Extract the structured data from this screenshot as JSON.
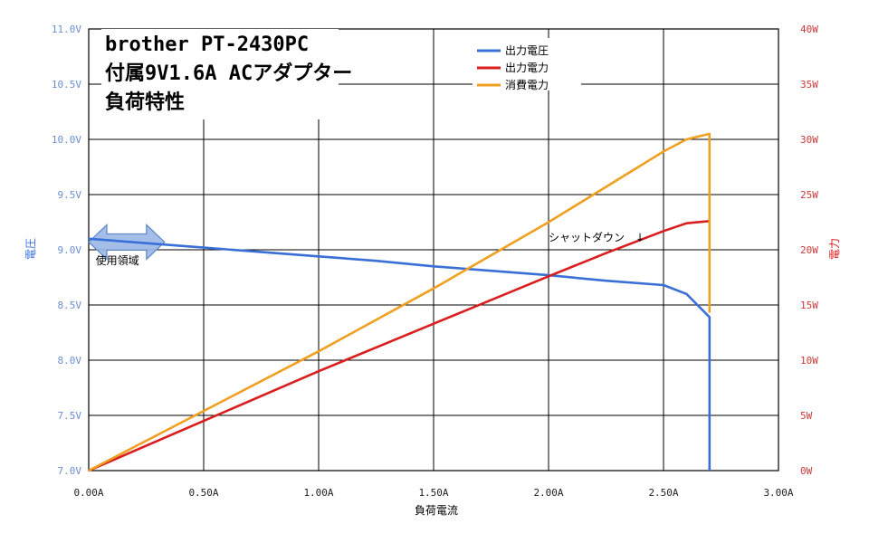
{
  "chart_data": {
    "type": "line",
    "title_lines": [
      "brother PT-2430PC",
      "付属9V1.6A ACアダプター",
      "負荷特性"
    ],
    "xlabel": "負荷電流",
    "ylabel_left": "電圧",
    "ylabel_right": "電力",
    "x_ticks": [
      "0.00A",
      "0.50A",
      "1.00A",
      "1.50A",
      "2.00A",
      "2.50A",
      "3.00A"
    ],
    "y_left_ticks": [
      "7.0V",
      "7.5V",
      "8.0V",
      "8.5V",
      "9.0V",
      "9.5V",
      "10.0V",
      "10.5V",
      "11.0V"
    ],
    "y_right_ticks": [
      "0W",
      "5W",
      "10W",
      "15W",
      "20W",
      "25W",
      "30W",
      "35W",
      "40W"
    ],
    "xlim": [
      0,
      3
    ],
    "ylim_left": [
      7,
      11
    ],
    "ylim_right": [
      0,
      40
    ],
    "grid": true,
    "legend_position": "top-right",
    "series": [
      {
        "name": "出力電圧",
        "color": "#3a6fd8",
        "axis": "left",
        "x": [
          0,
          0.25,
          0.5,
          0.75,
          1.0,
          1.25,
          1.5,
          1.75,
          2.0,
          2.25,
          2.5,
          2.6,
          2.7,
          2.7
        ],
        "y": [
          9.1,
          9.06,
          9.02,
          8.98,
          8.94,
          8.9,
          8.85,
          8.81,
          8.77,
          8.72,
          8.68,
          8.6,
          8.39,
          7.0
        ]
      },
      {
        "name": "出力電力",
        "color": "#d81e1e",
        "axis": "right",
        "x": [
          0,
          0.5,
          1.0,
          1.5,
          2.0,
          2.25,
          2.5,
          2.6,
          2.7
        ],
        "y": [
          0,
          4.5,
          9.0,
          13.3,
          17.6,
          19.7,
          21.7,
          22.4,
          22.6
        ]
      },
      {
        "name": "消費電力",
        "color": "#f0a020",
        "axis": "right",
        "x": [
          0,
          0.5,
          1.0,
          1.5,
          2.0,
          2.25,
          2.5,
          2.6,
          2.7,
          2.7
        ],
        "y": [
          0,
          5.4,
          10.8,
          16.5,
          22.5,
          25.7,
          28.9,
          30.0,
          30.5,
          14.3
        ]
      }
    ],
    "annotations": [
      {
        "text": "使用領域",
        "x": 0.3,
        "y_left": 8.9
      },
      {
        "text": "シャットダウン　↓",
        "x": 2.0,
        "y_left": 9.06
      }
    ],
    "usage_band": {
      "x_range": [
        0,
        0.33
      ],
      "y_left": 9.07
    }
  }
}
